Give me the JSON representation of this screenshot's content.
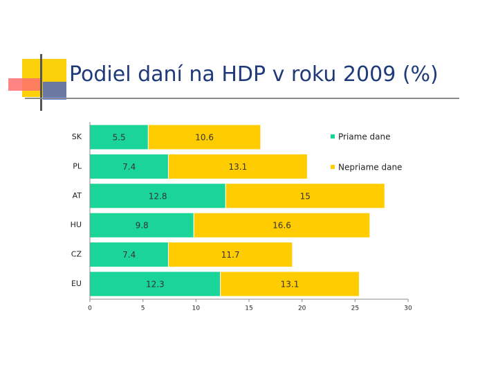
{
  "slide": {
    "title": "Podiel daní na HDP v roku 2009 (%)"
  },
  "colors": {
    "title": "#1f3a78",
    "deco_yellow": "#fdd00c",
    "deco_red": "#ff6b6b",
    "deco_blue": "#3355cc",
    "deco_line": "#555555",
    "rule": "#8a8a8a"
  },
  "chart_data": {
    "type": "bar",
    "orientation": "horizontal",
    "stacked": true,
    "categories": [
      "SK",
      "PL",
      "AT",
      "HU",
      "CZ",
      "EU"
    ],
    "series": [
      {
        "name": "Priame dane",
        "color": "#1bd498",
        "values": [
          5.5,
          7.4,
          12.8,
          9.8,
          7.4,
          12.3
        ]
      },
      {
        "name": "Nepriame dane",
        "color": "#ffcc00",
        "values": [
          10.6,
          13.1,
          15,
          16.6,
          11.7,
          13.1
        ]
      }
    ],
    "xlim": [
      0,
      30
    ],
    "xticks": [
      "0",
      "5",
      "10",
      "15",
      "20",
      "25",
      "30"
    ],
    "data_labels": true,
    "grid": false,
    "legend_position": "right"
  }
}
